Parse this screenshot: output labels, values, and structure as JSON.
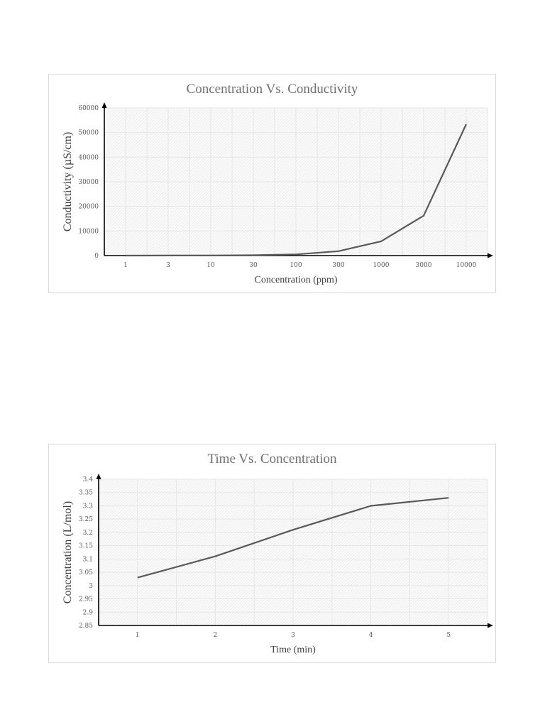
{
  "chart_data": [
    {
      "type": "line",
      "title": "Concentration Vs. Conductivity",
      "xlabel": "Concentration (ppm)",
      "ylabel": "Conductivity (µS/cm)",
      "categories": [
        "1",
        "3",
        "10",
        "30",
        "100",
        "300",
        "1000",
        "3000",
        "10000"
      ],
      "series": [
        {
          "name": "Conductivity",
          "values": [
            5,
            15,
            50,
            150,
            500,
            1800,
            5800,
            16200,
            53400
          ]
        }
      ],
      "ylim": [
        0,
        60000
      ],
      "yticks": [
        "0",
        "10000",
        "20000",
        "30000",
        "40000",
        "50000",
        "60000"
      ],
      "grid": true,
      "legend": "none",
      "line_color": "#595959"
    },
    {
      "type": "line",
      "title": "Time Vs. Concentration",
      "xlabel": "Time (min)",
      "ylabel": "Concentration (L/mol)",
      "categories": [
        "1",
        "2",
        "3",
        "4",
        "5"
      ],
      "series": [
        {
          "name": "Concentration",
          "values": [
            3.03,
            3.11,
            3.21,
            3.3,
            3.33
          ]
        }
      ],
      "ylim": [
        2.85,
        3.4
      ],
      "yticks": [
        "2.85",
        "2.9",
        "2.95",
        "3",
        "3.05",
        "3.1",
        "3.15",
        "3.2",
        "3.25",
        "3.3",
        "3.35",
        "3.4"
      ],
      "grid": true,
      "legend": "none",
      "line_color": "#595959"
    }
  ],
  "charts": {
    "chart1": {
      "title": "Concentration Vs. Conductivity",
      "xlabel": "Concentration (ppm)",
      "ylabel": "Conductivity (µS/cm)"
    },
    "chart2": {
      "title": "Time Vs. Concentration",
      "xlabel": "Time (min)",
      "ylabel": "Concentration (L/mol)"
    }
  },
  "colors": {
    "line": "#595959",
    "axis": "#000000",
    "grid": "#e6e6e6",
    "hatch": "#eeeeee",
    "title": "#6f6f6f"
  }
}
